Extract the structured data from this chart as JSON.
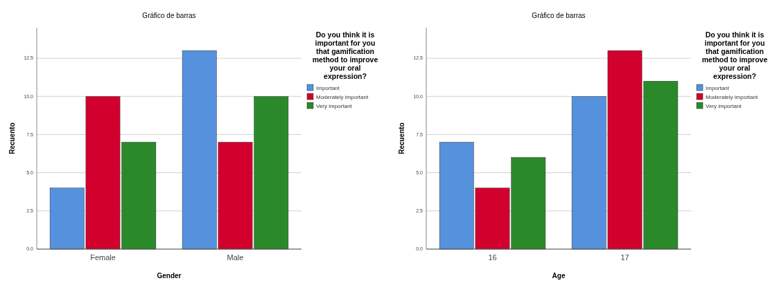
{
  "chart_data": [
    {
      "type": "bar",
      "title": "Gráfico de barras",
      "xlabel": "Gender",
      "ylabel": "Recuento",
      "legend_title": "Do you think it is important for you that gamification method to improve your oral expression?",
      "categories": [
        "Female",
        "Male"
      ],
      "series": [
        {
          "name": "Important",
          "color": "#5591dc",
          "values": [
            4,
            13
          ]
        },
        {
          "name": "Moderately important",
          "color": "#d2002d",
          "values": [
            10,
            7
          ]
        },
        {
          "name": "Very important",
          "color": "#2a8a2a",
          "values": [
            7,
            10
          ]
        }
      ],
      "ylim": [
        0,
        14.5
      ],
      "yticks": [
        {
          "value": 0,
          "label": "0.0"
        },
        {
          "value": 2.5,
          "label": "2.5"
        },
        {
          "value": 5,
          "label": "5.0"
        },
        {
          "value": 7.5,
          "label": "7.5"
        },
        {
          "value": 10,
          "label": "10.0"
        },
        {
          "value": 12.5,
          "label": "12.5"
        }
      ],
      "grid": "y",
      "legend": "right"
    },
    {
      "type": "bar",
      "title": "Gráfico de barras",
      "xlabel": "Age",
      "ylabel": "Recuento",
      "legend_title": "Do you think it is important for you that gamification method to improve your oral expression?",
      "categories": [
        "16",
        "17"
      ],
      "series": [
        {
          "name": "Important",
          "color": "#5591dc",
          "values": [
            7,
            10
          ]
        },
        {
          "name": "Moderately important",
          "color": "#d2002d",
          "values": [
            4,
            13
          ]
        },
        {
          "name": "Very important",
          "color": "#2a8a2a",
          "values": [
            6,
            11
          ]
        }
      ],
      "ylim": [
        0,
        14.5
      ],
      "yticks": [
        {
          "value": 0,
          "label": "0.0"
        },
        {
          "value": 2.5,
          "label": "2.5"
        },
        {
          "value": 5,
          "label": "5.0"
        },
        {
          "value": 7.5,
          "label": "7.5"
        },
        {
          "value": 10,
          "label": "10.0"
        },
        {
          "value": 12.5,
          "label": "12.5"
        }
      ],
      "grid": "y",
      "legend": "right"
    }
  ]
}
